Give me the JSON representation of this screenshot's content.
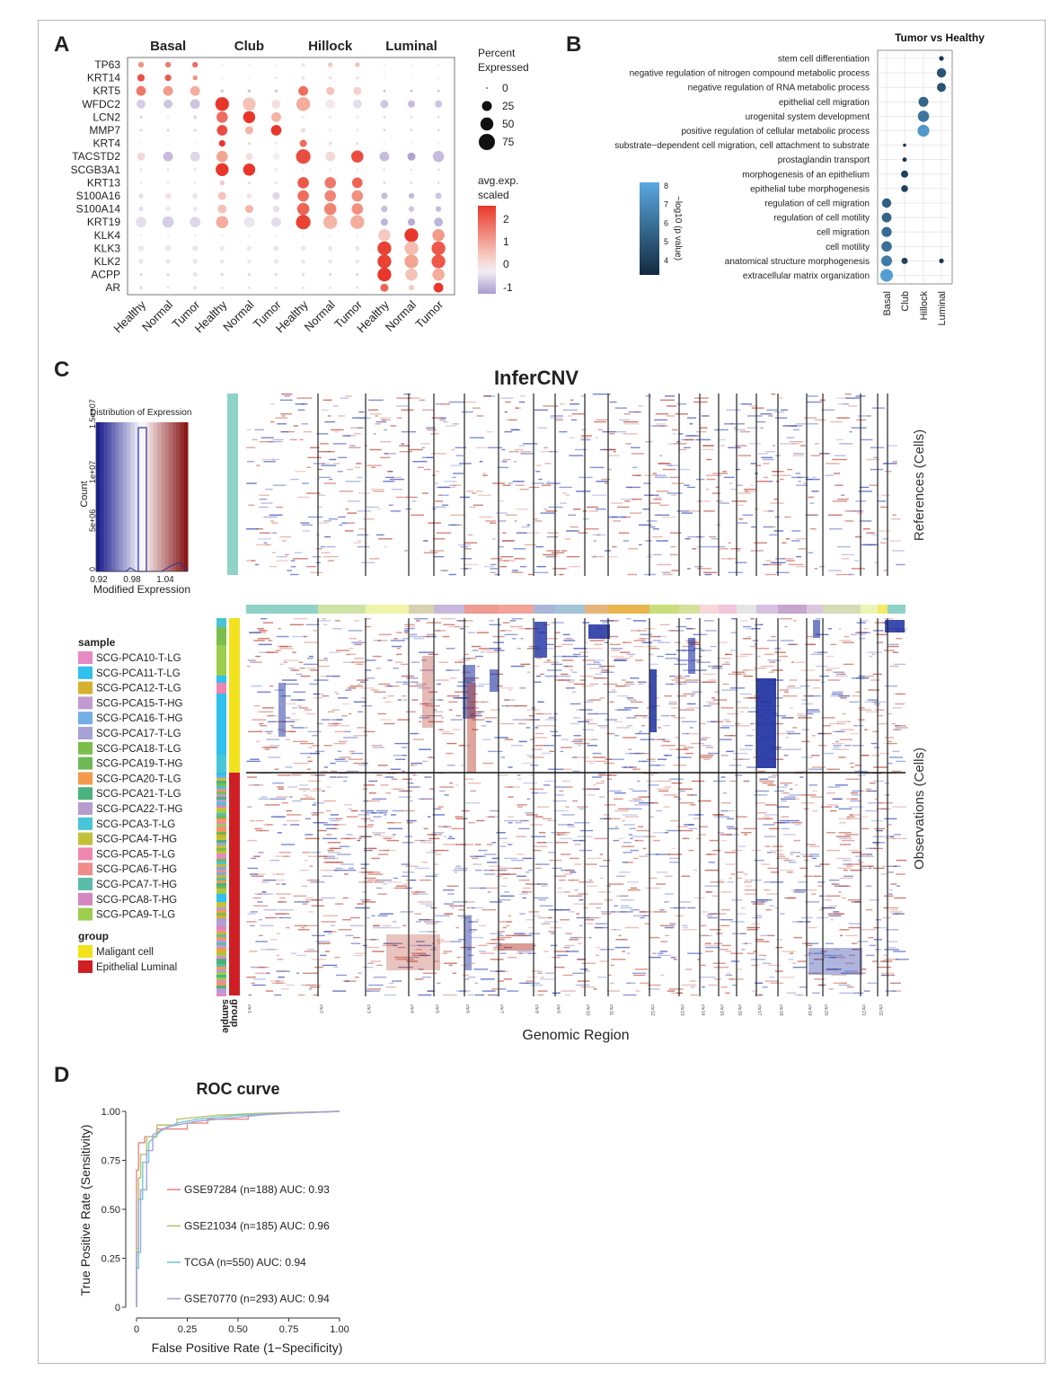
{
  "panel_labels": {
    "a": "A",
    "b": "B",
    "c": "C",
    "d": "D"
  },
  "colors": {
    "high": "#e8372a",
    "mid": "#f4a592",
    "zero": "#f3eef4",
    "low": "#a99bcd",
    "go_dark": "#1a3650",
    "go_light": "#5aa8e0",
    "cnv_red": "#b73a2b",
    "cnv_blue": "#1b2ea0",
    "roc": [
      "#e88a86",
      "#b7c36c",
      "#72c8cf",
      "#a7a3d6"
    ],
    "group_malignant": "#f2e21b",
    "group_luminal": "#cf1f24",
    "reference_bar": "#8ed3c6"
  },
  "panel_a": {
    "cell_types": [
      "Basal",
      "Club",
      "Hillock",
      "Luminal"
    ],
    "conditions": [
      "Healthy",
      "Normal",
      "Tumor"
    ],
    "x_labels": [
      "Healthy",
      "Normal",
      "Tumor",
      "Healthy",
      "Normal",
      "Tumor",
      "Healthy",
      "Normal",
      "Tumor",
      "Healthy",
      "Normal",
      "Tumor"
    ],
    "genes": [
      "TP63",
      "KRT14",
      "KRT5",
      "WFDC2",
      "LCN2",
      "MMP7",
      "KRT4",
      "TACSTD2",
      "SCGB3A1",
      "KRT13",
      "S100A16",
      "S100A14",
      "KRT19",
      "KLK4",
      "KLK3",
      "KLK2",
      "ACPP",
      "AR"
    ],
    "size_legend": {
      "title": "Percent\nExpressed",
      "values": [
        "0",
        "25",
        "50",
        "75"
      ]
    },
    "color_legend": {
      "title": "avg.exp.\nscaled",
      "ticks": [
        "2",
        "1",
        "0",
        "-1"
      ]
    }
  },
  "panel_b": {
    "title": "Tumor vs Healthy",
    "terms": [
      "stem cell differentiation",
      "negative regulation of nitrogen compound metabolic process",
      "negative regulation of RNA metabolic process",
      "epithelial cell migration",
      "urogenital system development",
      "positive regulation of cellular metabolic process",
      "substrate−dependent cell migration, cell attachment to substrate",
      "prostaglandin transport",
      "morphogenesis of an epithelium",
      "epithelial tube morphogenesis",
      "regulation of cell migration",
      "regulation of cell motility",
      "cell migration",
      "cell motility",
      "anatomical structure morphogenesis",
      "extracellular matrix organization"
    ],
    "columns": [
      "Basal",
      "Club",
      "Hillock",
      "Luminal"
    ],
    "colorbar_label": "−log10 (p value)",
    "colorbar_ticks": [
      "8",
      "7",
      "6",
      "5",
      "4"
    ]
  },
  "panel_c": {
    "title": "InferCNV",
    "hist_title": "Distribution of Expression",
    "hist_xlabel": "Modified Expression",
    "hist_ylabel": "Count",
    "hist_xticks": [
      "0.92",
      "0.98",
      "1.04"
    ],
    "hist_yticks": [
      "0",
      "5e+06",
      "1e+07",
      "1.5e+07"
    ],
    "references_label": "References (Cells)",
    "observations_label": "Observations (Cells)",
    "x_label": "Genomic Region",
    "chromosomes": [
      "chr1",
      "chr2",
      "chr3",
      "chr4",
      "chr5",
      "chr6",
      "chr7",
      "chr8",
      "chr9",
      "chr10",
      "chr11",
      "chr12",
      "chr13",
      "chr14",
      "chr15",
      "chr16",
      "chr17",
      "chr18",
      "chr19",
      "chr20",
      "chr21",
      "chr22"
    ],
    "sample_title": "sample",
    "samples": [
      {
        "name": "SCG-PCA10-T-LG",
        "color": "#e58ac3"
      },
      {
        "name": "SCG-PCA11-T-LG",
        "color": "#2fc0ec"
      },
      {
        "name": "SCG-PCA12-T-LG",
        "color": "#d5b22d"
      },
      {
        "name": "SCG-PCA15-T-HG",
        "color": "#c19ad2"
      },
      {
        "name": "SCG-PCA16-T-HG",
        "color": "#74aee6"
      },
      {
        "name": "SCG-PCA17-T-LG",
        "color": "#a6a1d6"
      },
      {
        "name": "SCG-PCA18-T-LG",
        "color": "#7abe4c"
      },
      {
        "name": "SCG-PCA19-T-HG",
        "color": "#6dba55"
      },
      {
        "name": "SCG-PCA20-T-LG",
        "color": "#f39a4e"
      },
      {
        "name": "SCG-PCA21-T-LG",
        "color": "#4ab27e"
      },
      {
        "name": "SCG-PCA22-T-HG",
        "color": "#b69ccf"
      },
      {
        "name": "SCG-PCA3-T-LG",
        "color": "#48c5d6"
      },
      {
        "name": "SCG-PCA4-T-HG",
        "color": "#c2c13a"
      },
      {
        "name": "SCG-PCA5-T-LG",
        "color": "#ef86b0"
      },
      {
        "name": "SCG-PCA6-T-HG",
        "color": "#f08c8a"
      },
      {
        "name": "SCG-PCA7-T-HG",
        "color": "#5bbcaa"
      },
      {
        "name": "SCG-PCA8-T-HG",
        "color": "#d586c0"
      },
      {
        "name": "SCG-PCA9-T-LG",
        "color": "#9ccd4e"
      }
    ],
    "group_title": "group",
    "groups": [
      {
        "name": "Maligant cell",
        "color": "#f2e21b"
      },
      {
        "name": "Epithelial Luminal",
        "color": "#cf1f24"
      }
    ],
    "bar_labels": {
      "sample": "sample",
      "group": "group"
    }
  },
  "chart_data": {
    "type": "line",
    "title": "ROC curve",
    "xlabel": "False Positive Rate (1−Specificity)",
    "ylabel": "True Positive Rate (Sensitivity)",
    "xlim": [
      0,
      1
    ],
    "ylim": [
      0,
      1
    ],
    "xticks": [
      "0",
      "0.25",
      "0.50",
      "0.75",
      "1.00"
    ],
    "yticks": [
      "0",
      "0.25",
      "0.50",
      "0.75",
      "1.00"
    ],
    "series": [
      {
        "name": "GSE97284 (n=188) AUC: 0.93",
        "color": "#e88a86",
        "x": [
          0,
          0,
          0.01,
          0.01,
          0.04,
          0.04,
          0.1,
          0.1,
          0.25,
          0.25,
          0.35,
          0.35,
          0.55,
          0.55,
          0.75,
          1.0
        ],
        "y": [
          0,
          0.7,
          0.7,
          0.84,
          0.84,
          0.87,
          0.87,
          0.91,
          0.91,
          0.94,
          0.94,
          0.96,
          0.96,
          0.98,
          0.99,
          1.0
        ]
      },
      {
        "name": "GSE21034 (n=185)  AUC: 0.96",
        "color": "#b7c36c",
        "x": [
          0,
          0,
          0.01,
          0.01,
          0.02,
          0.02,
          0.05,
          0.05,
          0.1,
          0.1,
          0.2,
          0.2,
          0.4,
          0.6,
          1.0
        ],
        "y": [
          0,
          0.3,
          0.3,
          0.66,
          0.66,
          0.78,
          0.78,
          0.87,
          0.87,
          0.93,
          0.93,
          0.96,
          0.98,
          0.99,
          1.0
        ]
      },
      {
        "name": "TCGA (n=550) AUC: 0.94",
        "color": "#72c8cf",
        "x": [
          0,
          0,
          0.01,
          0.01,
          0.03,
          0.03,
          0.06,
          0.06,
          0.12,
          0.2,
          0.3,
          0.5,
          0.7,
          1.0
        ],
        "y": [
          0,
          0.2,
          0.2,
          0.55,
          0.55,
          0.74,
          0.74,
          0.84,
          0.9,
          0.94,
          0.96,
          0.98,
          0.99,
          1.0
        ]
      },
      {
        "name": "GSE70770 (n=293) AUC: 0.94",
        "color": "#a7a3d6",
        "x": [
          0,
          0,
          0.02,
          0.02,
          0.05,
          0.05,
          0.08,
          0.08,
          0.15,
          0.3,
          0.5,
          0.7,
          1.0
        ],
        "y": [
          0,
          0.28,
          0.28,
          0.6,
          0.6,
          0.8,
          0.8,
          0.88,
          0.92,
          0.95,
          0.97,
          0.99,
          1.0
        ]
      }
    ]
  }
}
